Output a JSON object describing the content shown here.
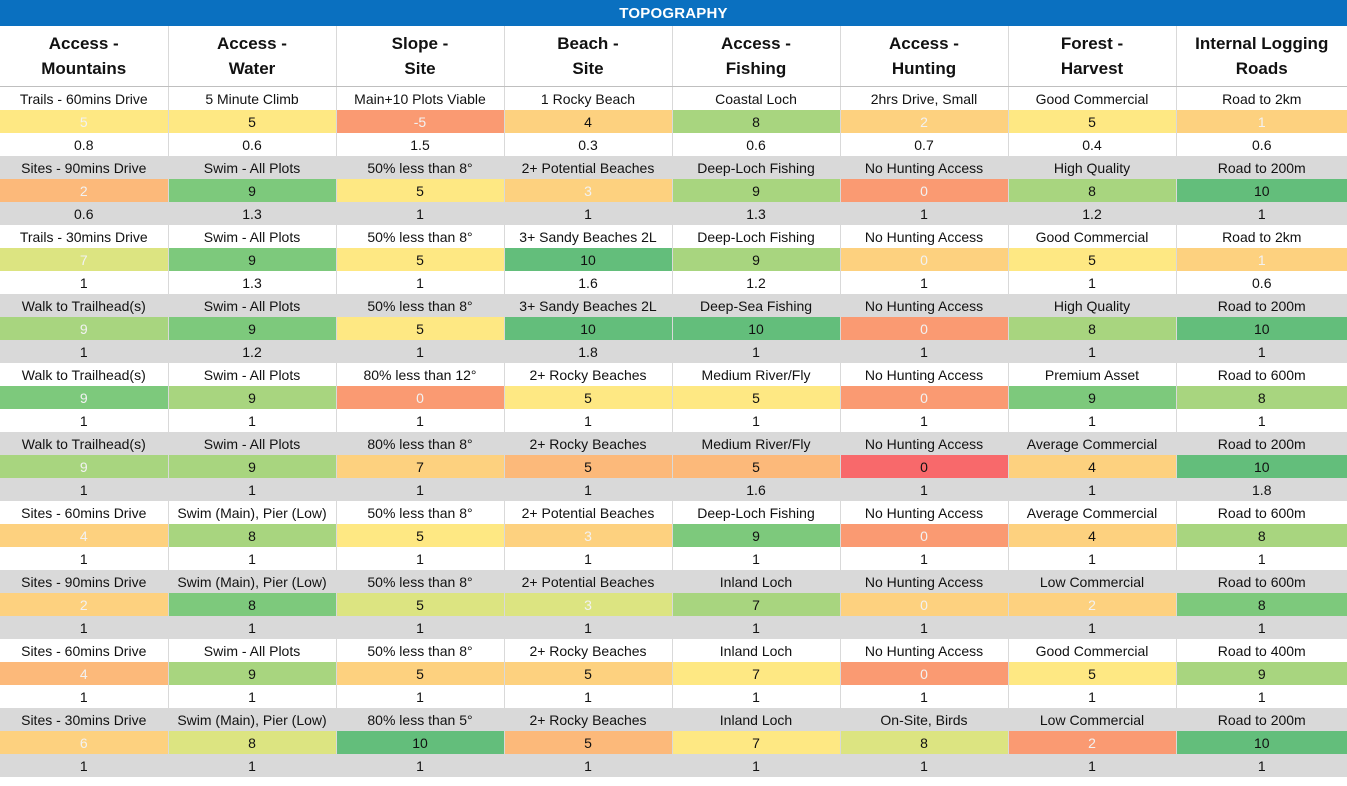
{
  "title": "TOPOGRAPHY",
  "columns": [
    {
      "line1": "Access -",
      "line2": "Mountains"
    },
    {
      "line1": "Access -",
      "line2": "Water"
    },
    {
      "line1": "Slope -",
      "line2": "Site"
    },
    {
      "line1": "Beach -",
      "line2": "Site"
    },
    {
      "line1": "Access -",
      "line2": "Fishing"
    },
    {
      "line1": "Access -",
      "line2": "Hunting"
    },
    {
      "line1": "Forest -",
      "line2": "Harvest"
    },
    {
      "line1": "Internal Logging",
      "line2": "Roads"
    }
  ],
  "colors": {
    "banner": "#0A70C0",
    "red": "#F8696B",
    "orange_red": "#FA9A72",
    "orange": "#FCB97A",
    "light_orange": "#FDD17F",
    "yellow": "#FEE883",
    "yellow_green": "#DCE481",
    "light_green": "#A8D57F",
    "green": "#7DC97C",
    "dark_green": "#63BE7B",
    "stripe_grey": "#D9D9D9",
    "white": "#FFFFFF"
  },
  "groups": [
    {
      "desc": [
        "Trails - 60mins Drive",
        "5 Minute Climb",
        "Main+10 Plots Viable",
        "1 Rocky Beach",
        "Coastal Loch",
        "2hrs Drive, Small",
        "Good Commercial",
        "Road to 2km"
      ],
      "scores": [
        "5",
        "5",
        "-5",
        "4",
        "8",
        "2",
        "5",
        "1"
      ],
      "score_colors": [
        "yellow",
        "yellow",
        "orange_red",
        "light_orange",
        "light_green",
        "light_orange",
        "yellow",
        "light_orange"
      ],
      "muted": [
        true,
        false,
        true,
        false,
        false,
        true,
        false,
        true
      ],
      "mult": [
        "0.8",
        "0.6",
        "1.5",
        "0.3",
        "0.6",
        "0.7",
        "0.4",
        "0.6"
      ]
    },
    {
      "desc": [
        "Sites - 90mins Drive",
        "Swim - All Plots",
        "50% less than 8°",
        "2+ Potential Beaches",
        "Deep-Loch Fishing",
        "No Hunting Access",
        "High Quality",
        "Road to 200m"
      ],
      "scores": [
        "2",
        "9",
        "5",
        "3",
        "9",
        "0",
        "8",
        "10"
      ],
      "score_colors": [
        "orange",
        "green",
        "yellow",
        "light_orange",
        "light_green",
        "orange_red",
        "light_green",
        "dark_green"
      ],
      "muted": [
        true,
        false,
        false,
        true,
        false,
        true,
        false,
        false
      ],
      "mult": [
        "0.6",
        "1.3",
        "1",
        "1",
        "1.3",
        "1",
        "1.2",
        "1"
      ]
    },
    {
      "desc": [
        "Trails - 30mins Drive",
        "Swim - All Plots",
        "50% less than 8°",
        "3+ Sandy Beaches 2L",
        "Deep-Loch Fishing",
        "No Hunting Access",
        "Good Commercial",
        "Road to 2km"
      ],
      "scores": [
        "7",
        "9",
        "5",
        "10",
        "9",
        "0",
        "5",
        "1"
      ],
      "score_colors": [
        "yellow_green",
        "green",
        "yellow",
        "dark_green",
        "light_green",
        "light_orange",
        "yellow",
        "light_orange"
      ],
      "muted": [
        true,
        false,
        false,
        false,
        false,
        true,
        false,
        true
      ],
      "mult": [
        "1",
        "1.3",
        "1",
        "1.6",
        "1.2",
        "1",
        "1",
        "0.6"
      ]
    },
    {
      "desc": [
        "Walk to Trailhead(s)",
        "Swim - All Plots",
        "50% less than 8°",
        "3+ Sandy Beaches 2L",
        "Deep-Sea Fishing",
        "No Hunting Access",
        "High Quality",
        "Road to 200m"
      ],
      "scores": [
        "9",
        "9",
        "5",
        "10",
        "10",
        "0",
        "8",
        "10"
      ],
      "score_colors": [
        "light_green",
        "green",
        "yellow",
        "dark_green",
        "dark_green",
        "orange_red",
        "light_green",
        "dark_green"
      ],
      "muted": [
        true,
        false,
        false,
        false,
        false,
        true,
        false,
        false
      ],
      "mult": [
        "1",
        "1.2",
        "1",
        "1.8",
        "1",
        "1",
        "1",
        "1"
      ]
    },
    {
      "desc": [
        "Walk to Trailhead(s)",
        "Swim - All Plots",
        "80% less than 12°",
        "2+ Rocky Beaches",
        "Medium River/Fly",
        "No Hunting Access",
        "Premium Asset",
        "Road to 600m"
      ],
      "scores": [
        "9",
        "9",
        "0",
        "5",
        "5",
        "0",
        "9",
        "8"
      ],
      "score_colors": [
        "green",
        "light_green",
        "orange_red",
        "yellow",
        "yellow",
        "orange_red",
        "green",
        "light_green"
      ],
      "muted": [
        true,
        false,
        true,
        false,
        false,
        true,
        false,
        false
      ],
      "mult": [
        "1",
        "1",
        "1",
        "1",
        "1",
        "1",
        "1",
        "1"
      ]
    },
    {
      "desc": [
        "Walk to Trailhead(s)",
        "Swim - All Plots",
        "80% less than 8°",
        "2+ Rocky Beaches",
        "Medium River/Fly",
        "No Hunting Access",
        "Average Commercial",
        "Road to 200m"
      ],
      "scores": [
        "9",
        "9",
        "7",
        "5",
        "5",
        "0",
        "4",
        "10"
      ],
      "score_colors": [
        "light_green",
        "light_green",
        "light_orange",
        "orange",
        "orange",
        "red",
        "light_orange",
        "dark_green"
      ],
      "muted": [
        true,
        false,
        false,
        false,
        false,
        false,
        false,
        false
      ],
      "mult": [
        "1",
        "1",
        "1",
        "1",
        "1.6",
        "1",
        "1",
        "1.8"
      ]
    },
    {
      "desc": [
        "Sites - 60mins Drive",
        "Swim (Main), Pier (Low)",
        "50% less than 8°",
        "2+ Potential Beaches",
        "Deep-Loch Fishing",
        "No Hunting Access",
        "Average Commercial",
        "Road to 600m"
      ],
      "scores": [
        "4",
        "8",
        "5",
        "3",
        "9",
        "0",
        "4",
        "8"
      ],
      "score_colors": [
        "light_orange",
        "light_green",
        "yellow",
        "light_orange",
        "green",
        "orange_red",
        "light_orange",
        "light_green"
      ],
      "muted": [
        true,
        false,
        false,
        true,
        false,
        true,
        false,
        false
      ],
      "mult": [
        "1",
        "1",
        "1",
        "1",
        "1",
        "1",
        "1",
        "1"
      ]
    },
    {
      "desc": [
        "Sites - 90mins Drive",
        "Swim (Main), Pier (Low)",
        "50% less than 8°",
        "2+ Potential Beaches",
        "Inland Loch",
        "No Hunting Access",
        "Low Commercial",
        "Road to 600m"
      ],
      "scores": [
        "2",
        "8",
        "5",
        "3",
        "7",
        "0",
        "2",
        "8"
      ],
      "score_colors": [
        "light_orange",
        "green",
        "yellow_green",
        "yellow_green",
        "light_green",
        "light_orange",
        "light_orange",
        "green"
      ],
      "muted": [
        true,
        false,
        false,
        true,
        false,
        true,
        true,
        false
      ],
      "mult": [
        "1",
        "1",
        "1",
        "1",
        "1",
        "1",
        "1",
        "1"
      ]
    },
    {
      "desc": [
        "Sites - 60mins Drive",
        "Swim - All Plots",
        "50% less than 8°",
        "2+ Rocky Beaches",
        "Inland Loch",
        "No Hunting Access",
        "Good Commercial",
        "Road to 400m"
      ],
      "scores": [
        "4",
        "9",
        "5",
        "5",
        "7",
        "0",
        "5",
        "9"
      ],
      "score_colors": [
        "orange",
        "light_green",
        "light_orange",
        "light_orange",
        "yellow",
        "orange_red",
        "yellow",
        "light_green"
      ],
      "muted": [
        true,
        false,
        false,
        false,
        false,
        true,
        false,
        false
      ],
      "mult": [
        "1",
        "1",
        "1",
        "1",
        "1",
        "1",
        "1",
        "1"
      ]
    },
    {
      "desc": [
        "Sites - 30mins Drive",
        "Swim (Main), Pier (Low)",
        "80% less than 5°",
        "2+ Rocky Beaches",
        "Inland Loch",
        "On-Site, Birds",
        "Low Commercial",
        "Road to 200m"
      ],
      "scores": [
        "6",
        "8",
        "10",
        "5",
        "7",
        "8",
        "2",
        "10"
      ],
      "score_colors": [
        "light_orange",
        "yellow_green",
        "dark_green",
        "orange",
        "yellow",
        "yellow_green",
        "orange_red",
        "dark_green"
      ],
      "muted": [
        true,
        false,
        false,
        false,
        false,
        false,
        true,
        false
      ],
      "mult": [
        "1",
        "1",
        "1",
        "1",
        "1",
        "1",
        "1",
        "1"
      ]
    }
  ]
}
